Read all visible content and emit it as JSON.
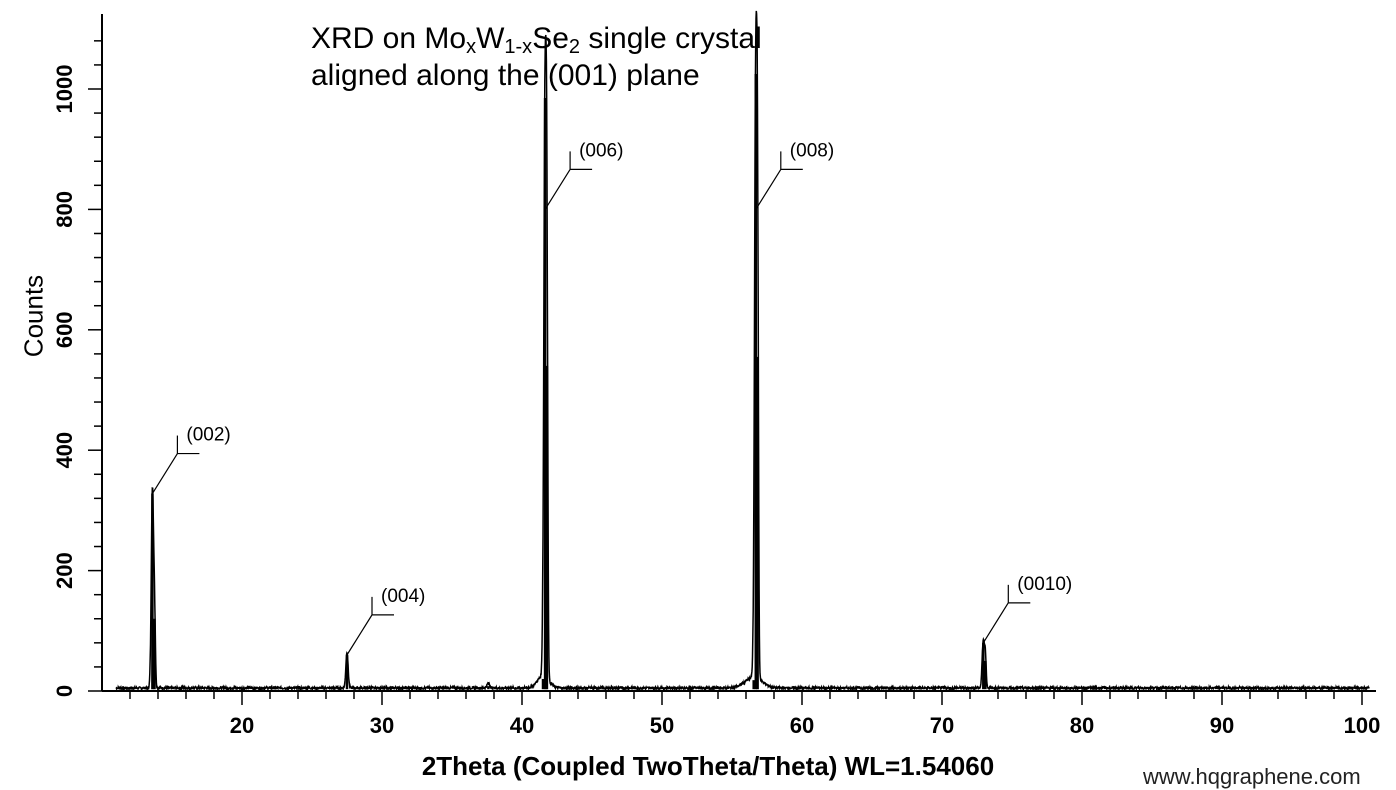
{
  "chart_data": {
    "type": "line",
    "title_line1": {
      "pre": "XRD on Mo",
      "sub1": "x",
      "mid": "W",
      "sub2": "1-x",
      "post": "Se",
      "sub3": "2",
      "tail": " single crystal"
    },
    "title_line2": "aligned along the (001) plane",
    "xlabel": "2Theta (Coupled TwoTheta/Theta) WL=1.54060",
    "ylabel": "Counts",
    "xlim": [
      10,
      101
    ],
    "ylim": [
      0,
      1120
    ],
    "x_ticks": [
      "20",
      "30",
      "40",
      "50",
      "60",
      "70",
      "80",
      "90",
      "100"
    ],
    "y_ticks": [
      "0",
      "200",
      "400",
      "600",
      "800",
      "1000"
    ],
    "grid": false,
    "series": [
      {
        "color": "#000000",
        "baseline": 3,
        "peaks": [
          {
            "x": 13.6,
            "y": 328,
            "width": 0.08
          },
          {
            "x": 13.75,
            "y": 120,
            "width": 0.06
          },
          {
            "x": 27.5,
            "y": 60,
            "width": 0.08
          },
          {
            "x": 37.6,
            "y": 8,
            "width": 0.1
          },
          {
            "x": 41.65,
            "y": 985,
            "width": 0.09
          },
          {
            "x": 41.78,
            "y": 540,
            "width": 0.06
          },
          {
            "x": 41.5,
            "y": 20,
            "width": 0.4
          },
          {
            "x": 56.7,
            "y": 1025,
            "width": 0.09
          },
          {
            "x": 56.83,
            "y": 555,
            "width": 0.06
          },
          {
            "x": 56.55,
            "y": 18,
            "width": 0.6
          },
          {
            "x": 72.95,
            "y": 80,
            "width": 0.08
          },
          {
            "x": 73.1,
            "y": 50,
            "width": 0.06
          }
        ]
      }
    ],
    "annotations": [
      {
        "label": "(002)",
        "x": 13.6,
        "y": 328
      },
      {
        "label": "(004)",
        "x": 27.5,
        "y": 60
      },
      {
        "label": "(006)",
        "x": 41.65,
        "y": 800
      },
      {
        "label": "(008)",
        "x": 56.7,
        "y": 800
      },
      {
        "label": "(0010)",
        "x": 72.95,
        "y": 80
      }
    ]
  },
  "watermark": "www.hqgraphene.com"
}
